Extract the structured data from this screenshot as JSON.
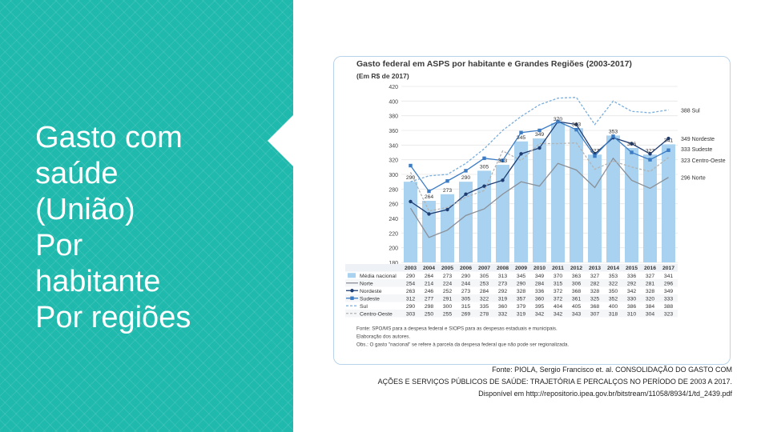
{
  "slide": {
    "title_lines": [
      "Gasto com",
      "saúde",
      "(União)",
      "Por",
      "habitante",
      "Por regiões"
    ],
    "credit_lines": [
      "Fonte: PIOLA, Sergio Francisco et. al. CONSOLIDAÇÃO DO GASTO COM",
      "AÇÕES E SERVIÇOS PÚBLICOS DE SAÚDE: TRAJETÓRIA E PERCALÇOS NO PERÍODO DE 2003 A 2017.",
      "Disponível em http://repositorio.ipea.gov.br/bitstream/11058/8934/1/td_2439.pdf"
    ],
    "accent_color": "#1fb9ad"
  },
  "chart_data": {
    "type": "bar",
    "title": "Gasto federal em ASPS por habitante e Grandes Regiões (2003-2017)",
    "subtitle": "(Em R$ de 2017)",
    "categories": [
      "2003",
      "2004",
      "2005",
      "2006",
      "2007",
      "2008",
      "2009",
      "2010",
      "2011",
      "2012",
      "2013",
      "2014",
      "2015",
      "2016",
      "2017"
    ],
    "ylim": [
      180,
      420
    ],
    "yticks": [
      180,
      200,
      220,
      240,
      260,
      280,
      300,
      320,
      340,
      360,
      380,
      400,
      420
    ],
    "grid": true,
    "series": [
      {
        "name": "Média nacional",
        "kind": "bar",
        "color": "#a8d2ef",
        "end_label": "",
        "values": [
          290,
          264,
          273,
          290,
          305,
          313,
          345,
          349,
          370,
          363,
          327,
          353,
          336,
          327,
          341
        ]
      },
      {
        "name": "Norte",
        "kind": "line",
        "color": "#8b8f97",
        "style": "solid",
        "marker": "none",
        "end_label": "296 Norte",
        "values": [
          254,
          214,
          224,
          244,
          253,
          273,
          290,
          284,
          315,
          306,
          282,
          322,
          292,
          281,
          296
        ]
      },
      {
        "name": "Nordeste",
        "kind": "line",
        "color": "#1f3d73",
        "style": "solid",
        "marker": "circle",
        "end_label": "349 Nordeste",
        "values": [
          263,
          246,
          252,
          273,
          284,
          292,
          328,
          336,
          372,
          368,
          328,
          350,
          342,
          328,
          349
        ]
      },
      {
        "name": "Sudeste",
        "kind": "line",
        "color": "#3c7cc4",
        "style": "solid",
        "marker": "square",
        "end_label": "333 Sudeste",
        "values": [
          312,
          277,
          291,
          305,
          322,
          319,
          357,
          360,
          372,
          361,
          325,
          352,
          330,
          320,
          333
        ]
      },
      {
        "name": "Sul",
        "kind": "line",
        "color": "#7aaedb",
        "style": "dashed",
        "marker": "none",
        "end_label": "388 Sul",
        "values": [
          290,
          298,
          300,
          315,
          335,
          360,
          379,
          395,
          404,
          405,
          368,
          400,
          386,
          384,
          388
        ]
      },
      {
        "name": "Centro-Oeste",
        "kind": "line",
        "color": "#b3b3b3",
        "style": "dashed",
        "marker": "none",
        "end_label": "323 Centro-Oeste",
        "values": [
          303,
          250,
          255,
          269,
          278,
          332,
          319,
          342,
          342,
          343,
          307,
          318,
          310,
          304,
          323
        ]
      }
    ],
    "bar_labels": [
      "290",
      "264",
      "273",
      "290",
      "305",
      "313",
      "345",
      "349",
      "370",
      "363",
      "327",
      "353",
      "336",
      "327",
      "341"
    ],
    "footnotes": [
      "Fonte: SPO/MS para a despesa federal e SIOPS para as despesas estaduais e municipais.",
      "Elaboração dos autores.",
      "Obs.: O gasto \"nacional\" se refere à parcela da despesa federal que não pode ser regionalizada."
    ]
  }
}
